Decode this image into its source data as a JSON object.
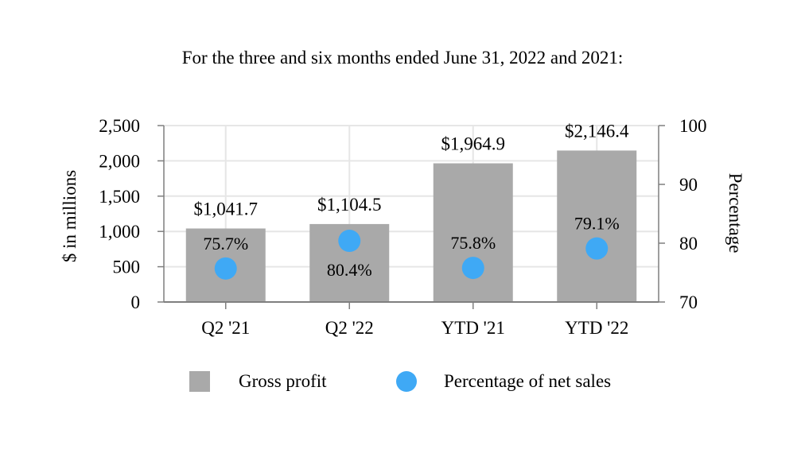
{
  "title": "For the three and six months ended June 31, 2022 and 2021:",
  "chart_data": {
    "type": "bar",
    "categories": [
      "Q2 '21",
      "Q2 '22",
      "YTD '21",
      "YTD '22"
    ],
    "series": [
      {
        "name": "Gross profit",
        "axis": "left",
        "values": [
          1041.7,
          1104.5,
          1964.9,
          2146.4
        ],
        "labels": [
          "$1,041.7",
          "$1,104.5",
          "$1,964.9",
          "$2,146.4"
        ],
        "color": "#a9a9a9"
      },
      {
        "name": "Percentage of net sales",
        "axis": "right",
        "type": "scatter",
        "values": [
          75.7,
          80.4,
          75.8,
          79.1
        ],
        "labels": [
          "75.7%",
          "80.4%",
          "75.8%",
          "79.1%"
        ],
        "color": "#3fa9f5"
      }
    ],
    "ylabel": "$ in millions",
    "ylim": [
      0,
      2500
    ],
    "yticks": [
      "0",
      "500",
      "1,000",
      "1,500",
      "2,000",
      "2,500"
    ],
    "y2label": "Percentage",
    "y2lim": [
      70,
      100
    ],
    "y2ticks": [
      "70",
      "80",
      "90",
      "100"
    ],
    "grid": true,
    "legend_position": "bottom"
  }
}
